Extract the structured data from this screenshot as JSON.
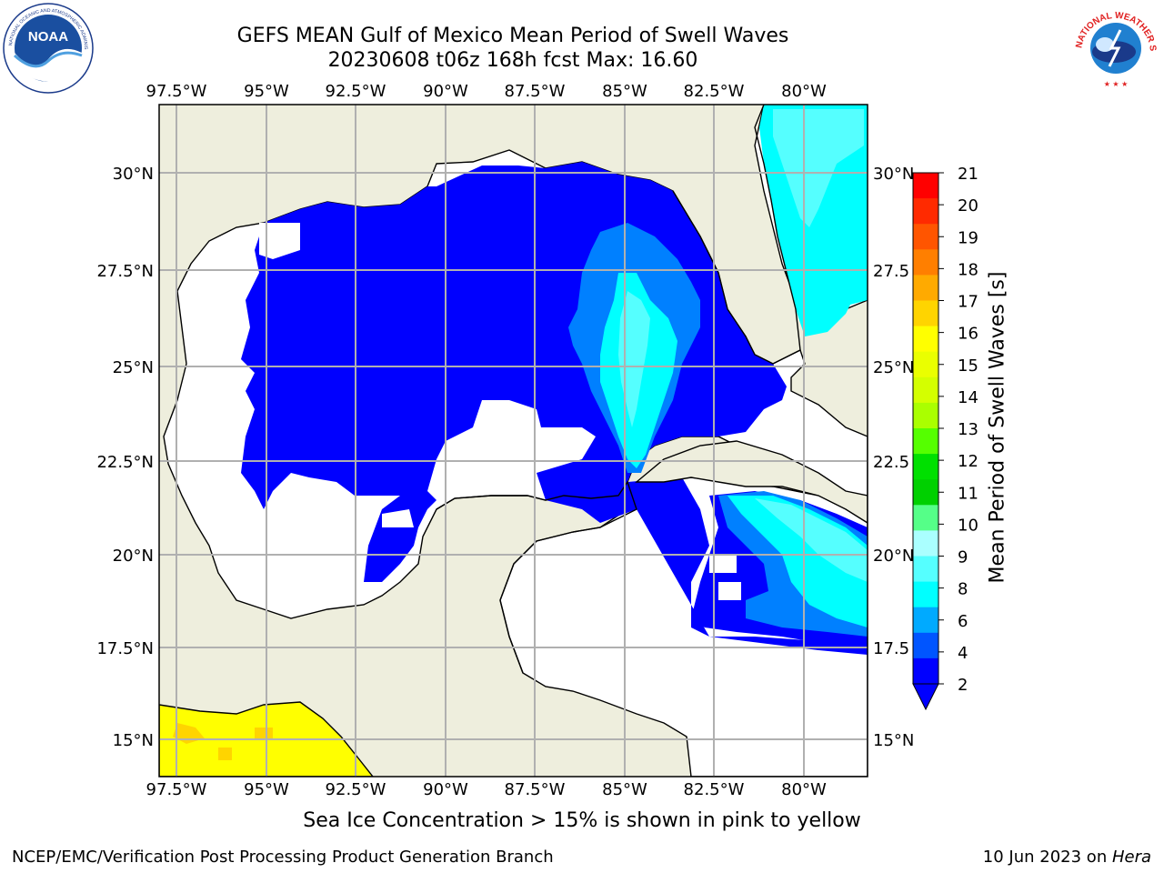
{
  "title_line1": "GEFS MEAN Gulf of Mexico Mean Period of Swell Waves",
  "title_line2": "20230608 t06z 168h fcst   Max: 16.60",
  "lon_ticks": [
    "97.5°W",
    "95°W",
    "92.5°W",
    "90°W",
    "87.5°W",
    "85°W",
    "82.5°W",
    "80°W"
  ],
  "lat_ticks_left": [
    "30°N",
    "27.5°N",
    "25°N",
    "22.5°N",
    "20°N",
    "17.5°N",
    "15°N"
  ],
  "lat_ticks_right": [
    "30°N",
    "27.5",
    "25°N",
    "22.5",
    "20°N",
    "17.5",
    "15°N"
  ],
  "colorbar": {
    "label": "Mean Period of Swell Waves [s]",
    "ticks": [
      "21",
      "20",
      "19",
      "18",
      "17",
      "16",
      "15",
      "14",
      "13",
      "12",
      "11",
      "10",
      "9",
      "8",
      "6",
      "4",
      "2"
    ],
    "colors": [
      "#ff0000",
      "#ff2a00",
      "#ff5500",
      "#ff7f00",
      "#ffaa00",
      "#ffd400",
      "#ffff00",
      "#eaff00",
      "#d4ff00",
      "#aaff00",
      "#55ff00",
      "#00e000",
      "#00d000",
      "#55ff88",
      "#aaffff",
      "#55ffff",
      "#00ffff",
      "#00aaff",
      "#0055ff",
      "#0000ff"
    ]
  },
  "legend_colors": {
    "land": "#eeeedd",
    "ocean_nodata": "#ffffff",
    "period_deep_blue": "#0000ff",
    "period_mid_blue": "#0080ff",
    "period_cyan": "#00ffff",
    "period_light_cyan": "#55ffff",
    "sea_ice_yellow": "#ffff00",
    "sea_ice_orange": "#ffd400"
  },
  "logos": {
    "left": "noaa-logo",
    "left_text": "NATIONAL OCEANIC AND ATMOSPHERIC ADMINISTRATION · U.S. DEPARTMENT OF COMMERCE",
    "left_mark": "NOAA",
    "right": "nws-logo",
    "right_text": "NATIONAL WEATHER SERVICE"
  },
  "bottom_caption": "Sea Ice Concentration > 15% is shown in pink to yellow",
  "footer_left": "NCEP/EMC/Verification Post Processing Product Generation Branch",
  "footer_right_date": "10 Jun 2023 on ",
  "footer_right_host": "Hera"
}
